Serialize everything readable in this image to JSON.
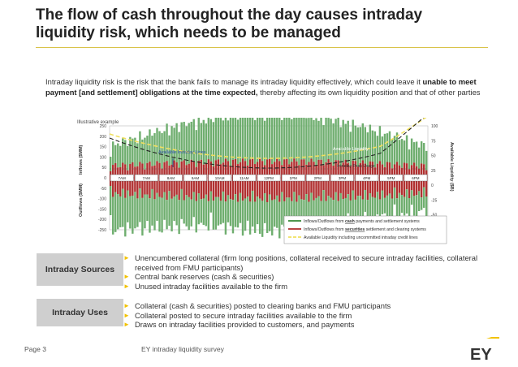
{
  "title_line1": "The flow of cash throughout the day causes intraday",
  "title_line2": "liquidity risk, which needs to be managed",
  "intro": {
    "part1": "Intraday liquidity risk is the risk that the bank fails to manage its intraday liquidity effectively, which could leave it ",
    "bold": "unable to meet payment [and settlement] obligations at the time expected,",
    "part2": " thereby affecting its own liquidity position and that of other parties"
  },
  "chart": {
    "illustrative": "Illustrative example",
    "left_axis_top": "Inflows ($MM)",
    "left_axis_bottom": "Outflows ($MM)",
    "right_axis": "Available Liquidity ($B)",
    "left_ticks": [
      "250",
      "200",
      "150",
      "100",
      "50",
      "0",
      "-50",
      "-100",
      "-150",
      "-200",
      "-250"
    ],
    "right_ticks": [
      "100",
      "75",
      "50",
      "25",
      "0",
      "-25",
      "-50",
      "-75"
    ],
    "time_labels": [
      "7AM",
      "7AM",
      "8AM",
      "9AM",
      "10AM",
      "11AM",
      "12PM",
      "1PM",
      "2PM",
      "3PM",
      "4PM",
      "5PM",
      "6PM"
    ],
    "ann_available_lines": "Available Intraday Lines",
    "ann_available_liquidity": "Available Liquidity",
    "ann_peak_usage": "Intraday Peak Usage",
    "legend": [
      {
        "pre": "Inflows/Outflows from ",
        "bold": "cash",
        "post": " payments and settlement systems",
        "color": "#3a8a3a"
      },
      {
        "pre": "Inflows/Outflows from ",
        "bold": "securities",
        "post": " settlement and clearing systems",
        "color": "#b03030"
      },
      {
        "pre": "",
        "bold": "",
        "post": "Available Liquidity including uncommitted intraday credit lines",
        "color": "#f0e060"
      }
    ]
  },
  "sources": {
    "label": "Intraday Sources",
    "items": [
      "Unencumbered collateral (firm long positions, collateral received to secure intraday facilities, collateral received from FMU participants)",
      "Central bank reserves (cash & securities)",
      "Unused intraday facilities available to the firm"
    ]
  },
  "uses": {
    "label": "Intraday Uses",
    "items": [
      "Collateral (cash & securities) posted to clearing banks and FMU participants",
      "Collateral posted to secure intraday facilities available to the firm",
      "Draws on intraday facilities provided to customers, and payments"
    ]
  },
  "footer": {
    "page": "Page 3",
    "survey": "EY intraday liquidity survey"
  },
  "logo_text": "EY",
  "colors": {
    "accent": "#f2c200",
    "cash": "#3a8a3a",
    "securities": "#b03030",
    "liquidity": "#f0e060"
  }
}
